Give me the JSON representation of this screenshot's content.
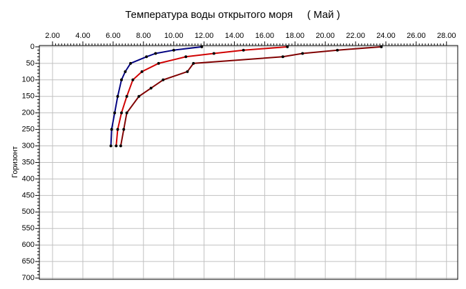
{
  "chart_data": {
    "type": "line",
    "title": "Температура воды открытого моря     ( Май )",
    "ylabel": "Горизонт",
    "xlim": [
      1.13,
      28.74
    ],
    "xticks": [
      {
        "value": 2,
        "label": "2.00"
      },
      {
        "value": 4,
        "label": "4.00"
      },
      {
        "value": 6,
        "label": "6.00"
      },
      {
        "value": 8,
        "label": "8.00"
      },
      {
        "value": 10,
        "label": "10.00"
      },
      {
        "value": 12,
        "label": "12.00"
      },
      {
        "value": 14,
        "label": "14.00"
      },
      {
        "value": 16,
        "label": "16.00"
      },
      {
        "value": 18,
        "label": "18.00"
      },
      {
        "value": 20,
        "label": "20.00"
      },
      {
        "value": 22,
        "label": "22.00"
      },
      {
        "value": 24,
        "label": "24.00"
      },
      {
        "value": 26,
        "label": "26.00"
      },
      {
        "value": 28,
        "label": "28.00"
      }
    ],
    "ylim": [
      -4,
      704
    ],
    "yticks": [
      0,
      50,
      100,
      150,
      200,
      250,
      300,
      350,
      400,
      450,
      500,
      550,
      600,
      650,
      700
    ],
    "y_inverted": true,
    "grid": true,
    "series": [
      {
        "color": "#000080",
        "x": [
          11.85,
          10.0,
          8.8,
          8.2,
          7.15,
          6.8,
          6.55,
          6.3,
          6.1,
          5.9,
          5.85
        ],
        "y": [
          0,
          10,
          20,
          30,
          50,
          75,
          100,
          150,
          200,
          250,
          300
        ]
      },
      {
        "color": "#d00000",
        "x": [
          17.5,
          14.6,
          12.65,
          10.8,
          9.0,
          7.9,
          7.3,
          6.9,
          6.55,
          6.3,
          6.2
        ],
        "y": [
          0,
          10,
          20,
          30,
          50,
          75,
          100,
          150,
          200,
          250,
          300
        ]
      },
      {
        "color": "#800000",
        "x": [
          23.7,
          20.8,
          18.5,
          17.2,
          11.3,
          10.9,
          9.3,
          8.5,
          7.7,
          6.9,
          6.7,
          6.5
        ],
        "y": [
          0,
          10,
          20,
          30,
          50,
          75,
          100,
          125,
          150,
          200,
          250,
          300
        ]
      }
    ]
  }
}
